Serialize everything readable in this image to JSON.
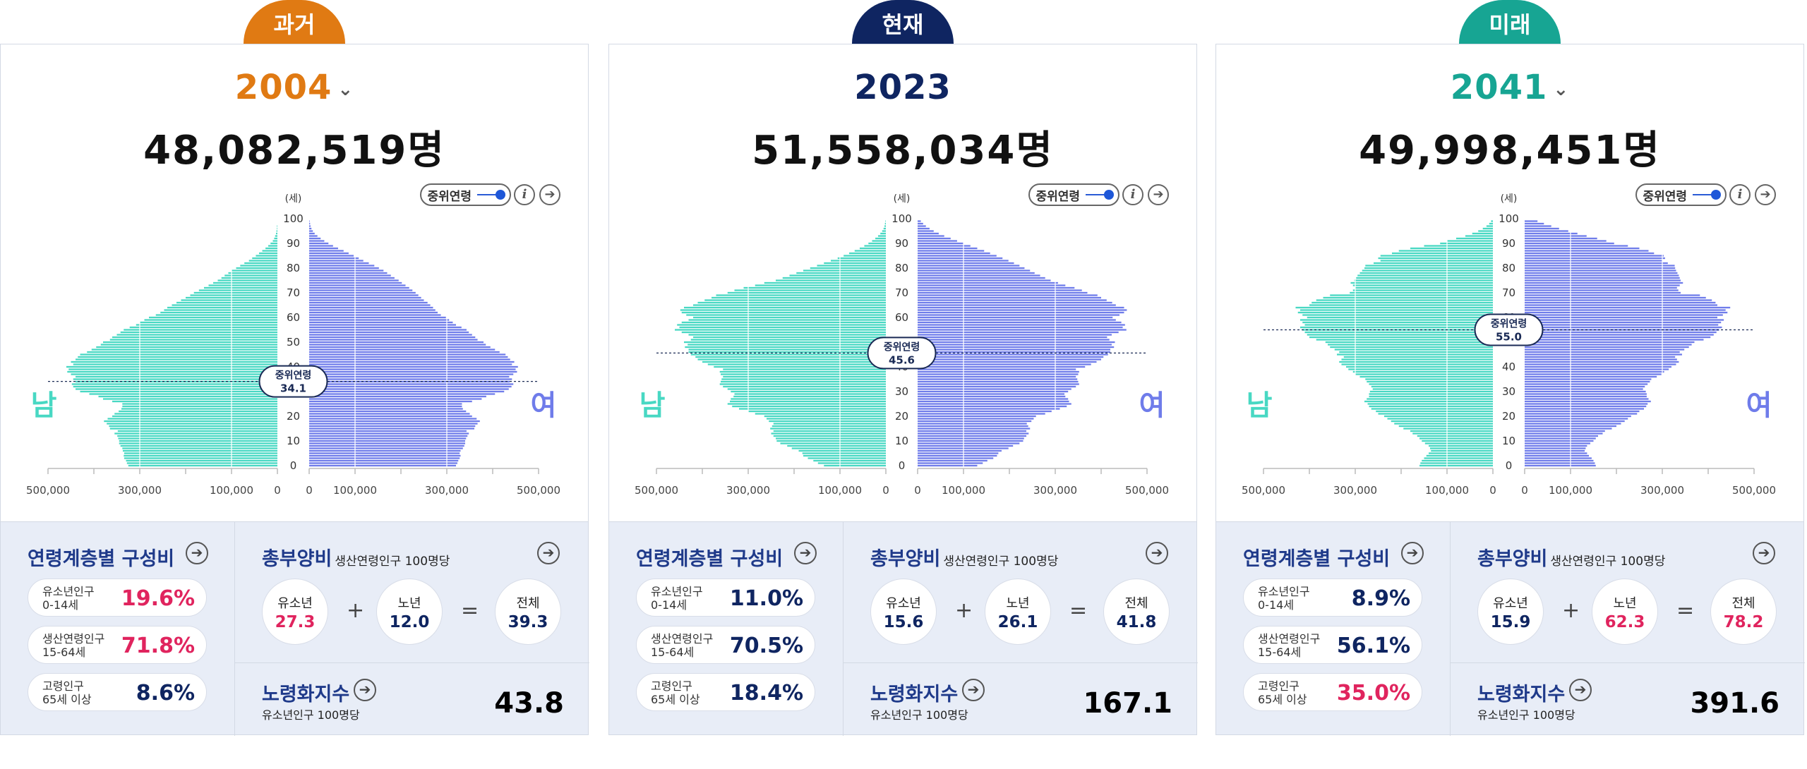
{
  "colors": {
    "male": "#48d8c3",
    "female": "#6f7cea",
    "past": "#e07a13",
    "present": "#0f2561",
    "future": "#17a593",
    "red": "#e0245e",
    "navy": "#0f2561"
  },
  "labels": {
    "unit_age": "(세)",
    "male": "남",
    "female": "여",
    "median_label": "중위연령",
    "toggle_label": "중위연령",
    "composition_title": "연령계층별 구성비",
    "dependency_title": "총부양비",
    "dependency_sub": "생산연령인구 100명당",
    "aging_title": "노령화지수",
    "aging_sub": "유소년인구 100명당",
    "youth_label": "유소년인구",
    "youth_range": "0-14세",
    "working_label": "생산연령인구",
    "working_range": "15-64세",
    "elderly_label": "고령인구",
    "elderly_range": "65세 이상",
    "b_youth": "유소년",
    "b_elderly": "노년",
    "b_total": "전체",
    "plus": "+",
    "equals": "=",
    "info_icon": "i",
    "arrow_icon": "➔",
    "dropdown_icon": "⌄"
  },
  "panels": [
    {
      "tab": "과거",
      "year": "2004",
      "has_dropdown": true,
      "total": "48,082,519명",
      "composition": {
        "youth": "19.6%",
        "working": "71.8%",
        "elderly": "8.6%"
      },
      "dependency": {
        "youth": "27.3",
        "elderly": "12.0",
        "total": "39.3"
      },
      "aging": "43.8"
    },
    {
      "tab": "현재",
      "year": "2023",
      "has_dropdown": false,
      "total": "51,558,034명",
      "composition": {
        "youth": "11.0%",
        "working": "70.5%",
        "elderly": "18.4%"
      },
      "dependency": {
        "youth": "15.6",
        "elderly": "26.1",
        "total": "41.8"
      },
      "aging": "167.1"
    },
    {
      "tab": "미래",
      "year": "2041",
      "has_dropdown": true,
      "total": "49,998,451명",
      "composition": {
        "youth": "8.9%",
        "working": "56.1%",
        "elderly": "35.0%"
      },
      "dependency": {
        "youth": "15.9",
        "elderly": "62.3",
        "total": "78.2"
      },
      "aging": "391.6"
    }
  ],
  "chart_data": [
    {
      "type": "bar",
      "orientation": "horizontal-population-pyramid",
      "year": "2004",
      "y_label": "(세)",
      "y_ticks": [
        "0",
        "10",
        "20",
        "30",
        "40",
        "50",
        "60",
        "70",
        "80",
        "90",
        "100"
      ],
      "x_ticks_left": [
        "500,000",
        "300,000",
        "100,000",
        "0"
      ],
      "x_ticks_right": [
        "0",
        "100,000",
        "300,000",
        "500,000"
      ],
      "xlim": [
        0,
        500000
      ],
      "median_age": "34.1",
      "male": [
        325,
        328,
        330,
        334,
        335,
        334,
        337,
        338,
        342,
        345,
        345,
        347,
        349,
        355,
        348,
        365,
        367,
        372,
        378,
        370,
        360,
        355,
        346,
        340,
        338,
        338,
        360,
        380,
        390,
        410,
        430,
        440,
        445,
        448,
        440,
        445,
        440,
        450,
        458,
        455,
        460,
        445,
        450,
        440,
        435,
        430,
        415,
        405,
        395,
        385,
        380,
        365,
        360,
        350,
        342,
        335,
        322,
        308,
        300,
        290,
        280,
        265,
        255,
        247,
        240,
        230,
        220,
        210,
        200,
        190,
        182,
        171,
        160,
        150,
        140,
        130,
        122,
        115,
        107,
        100,
        90,
        81,
        72,
        62,
        55,
        47,
        40,
        33,
        26,
        20,
        15,
        10,
        7,
        5,
        3,
        2,
        1,
        1,
        0,
        0,
        0
      ],
      "female": [
        320,
        323,
        325,
        328,
        330,
        328,
        330,
        335,
        338,
        340,
        340,
        342,
        345,
        348,
        343,
        360,
        362,
        367,
        372,
        365,
        355,
        350,
        342,
        335,
        333,
        333,
        355,
        376,
        386,
        405,
        425,
        435,
        441,
        445,
        437,
        442,
        436,
        445,
        453,
        450,
        455,
        442,
        447,
        438,
        433,
        428,
        415,
        405,
        395,
        385,
        380,
        367,
        362,
        355,
        348,
        343,
        332,
        320,
        313,
        305,
        298,
        287,
        280,
        275,
        270,
        264,
        258,
        250,
        244,
        238,
        232,
        225,
        218,
        210,
        202,
        195,
        186,
        178,
        170,
        162,
        152,
        142,
        130,
        118,
        108,
        97,
        86,
        75,
        63,
        52,
        42,
        33,
        25,
        18,
        12,
        8,
        5,
        3,
        2,
        1,
        0
      ]
    },
    {
      "type": "bar",
      "orientation": "horizontal-population-pyramid",
      "year": "2023",
      "y_label": "(세)",
      "y_ticks": [
        "0",
        "10",
        "20",
        "30",
        "40",
        "50",
        "60",
        "70",
        "80",
        "90",
        "100"
      ],
      "x_ticks_left": [
        "500,000",
        "300,000",
        "100,000",
        "0"
      ],
      "x_ticks_right": [
        "0",
        "100,000",
        "300,000",
        "500,000"
      ],
      "xlim": [
        0,
        500000
      ],
      "median_age": "45.6",
      "male": [
        135,
        148,
        158,
        170,
        180,
        182,
        190,
        205,
        215,
        230,
        238,
        240,
        245,
        250,
        245,
        252,
        248,
        245,
        255,
        260,
        265,
        285,
        300,
        320,
        335,
        345,
        340,
        338,
        332,
        330,
        338,
        345,
        355,
        362,
        360,
        358,
        355,
        360,
        362,
        355,
        375,
        388,
        400,
        410,
        415,
        425,
        430,
        430,
        438,
        432,
        440,
        425,
        420,
        430,
        445,
        460,
        450,
        455,
        445,
        430,
        420,
        435,
        445,
        448,
        440,
        420,
        410,
        395,
        380,
        370,
        345,
        330,
        310,
        285,
        265,
        240,
        225,
        210,
        195,
        180,
        165,
        150,
        135,
        120,
        105,
        92,
        80,
        68,
        57,
        47,
        38,
        30,
        23,
        17,
        12,
        8,
        5,
        3,
        2,
        1,
        0
      ],
      "female": [
        130,
        142,
        152,
        165,
        173,
        176,
        183,
        198,
        208,
        222,
        230,
        232,
        237,
        242,
        237,
        245,
        241,
        238,
        248,
        253,
        258,
        278,
        292,
        310,
        325,
        335,
        330,
        328,
        322,
        320,
        328,
        335,
        345,
        352,
        350,
        348,
        345,
        350,
        352,
        345,
        365,
        378,
        390,
        400,
        405,
        415,
        420,
        420,
        428,
        423,
        430,
        418,
        413,
        423,
        438,
        455,
        447,
        452,
        444,
        432,
        425,
        440,
        450,
        456,
        450,
        432,
        424,
        412,
        400,
        392,
        370,
        358,
        342,
        322,
        306,
        290,
        278,
        267,
        255,
        245,
        233,
        222,
        210,
        198,
        185,
        172,
        158,
        145,
        130,
        115,
        100,
        86,
        72,
        58,
        46,
        35,
        26,
        18,
        12,
        7,
        0
      ]
    },
    {
      "type": "bar",
      "orientation": "horizontal-population-pyramid",
      "year": "2041",
      "y_label": "(세)",
      "y_ticks": [
        "0",
        "10",
        "20",
        "30",
        "40",
        "50",
        "60",
        "70",
        "80",
        "90",
        "100"
      ],
      "x_ticks_left": [
        "500,000",
        "300,000",
        "100,000",
        "0"
      ],
      "x_ticks_right": [
        "0",
        "100,000",
        "300,000",
        "500,000"
      ],
      "xlim": [
        0,
        500000
      ],
      "median_age": "55.0",
      "male": [
        160,
        158,
        155,
        150,
        145,
        140,
        135,
        137,
        140,
        148,
        155,
        160,
        165,
        175,
        180,
        195,
        205,
        215,
        222,
        230,
        237,
        250,
        255,
        265,
        270,
        273,
        280,
        275,
        270,
        270,
        268,
        262,
        265,
        270,
        275,
        278,
        290,
        300,
        305,
        315,
        320,
        330,
        335,
        330,
        325,
        340,
        335,
        345,
        355,
        360,
        365,
        385,
        400,
        405,
        410,
        415,
        420,
        410,
        415,
        420,
        405,
        415,
        425,
        420,
        430,
        400,
        395,
        385,
        370,
        355,
        312,
        305,
        300,
        305,
        310,
        302,
        298,
        295,
        290,
        285,
        280,
        278,
        260,
        245,
        250,
        245,
        220,
        205,
        180,
        150,
        115,
        100,
        80,
        60,
        45,
        32,
        22,
        14,
        8,
        4,
        0
      ],
      "female": [
        155,
        153,
        150,
        146,
        140,
        136,
        131,
        133,
        136,
        143,
        150,
        155,
        160,
        170,
        175,
        190,
        200,
        210,
        218,
        225,
        232,
        245,
        250,
        260,
        265,
        268,
        275,
        270,
        266,
        266,
        264,
        258,
        262,
        268,
        273,
        276,
        288,
        298,
        304,
        314,
        320,
        330,
        336,
        332,
        328,
        343,
        338,
        348,
        358,
        364,
        370,
        390,
        405,
        412,
        418,
        424,
        430,
        422,
        428,
        434,
        420,
        432,
        442,
        438,
        448,
        420,
        416,
        408,
        395,
        382,
        340,
        335,
        332,
        338,
        345,
        340,
        338,
        336,
        333,
        330,
        328,
        327,
        312,
        300,
        306,
        303,
        282,
        270,
        250,
        225,
        195,
        178,
        158,
        135,
        115,
        95,
        75,
        58,
        42,
        28,
        0
      ]
    }
  ]
}
